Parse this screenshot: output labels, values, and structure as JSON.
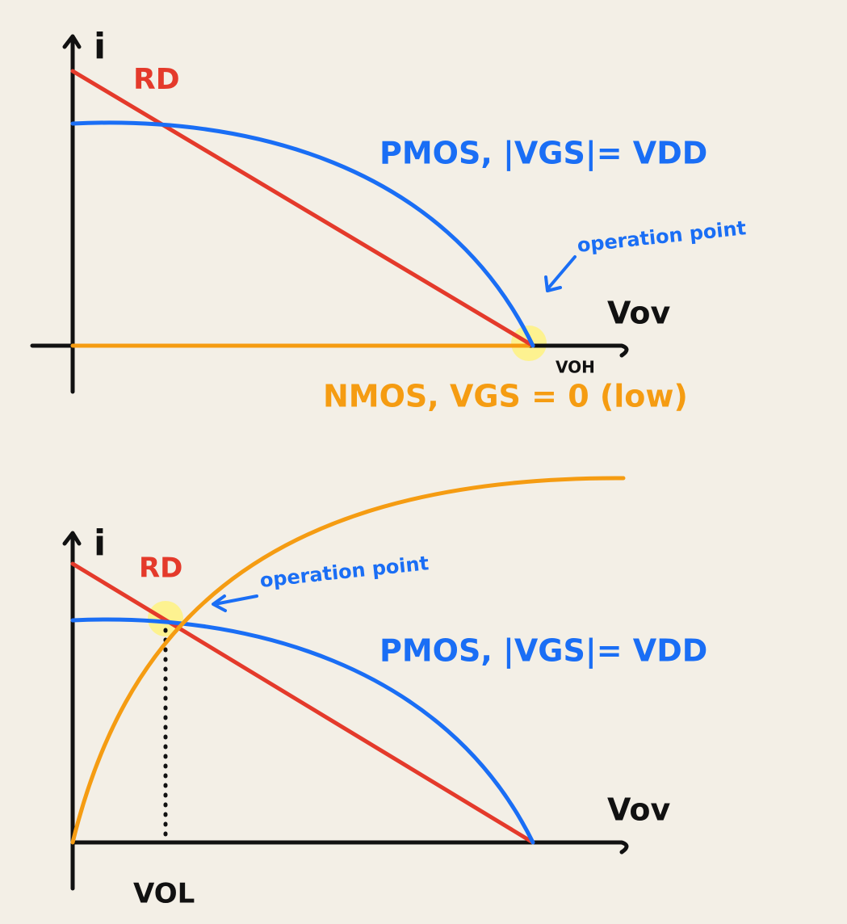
{
  "panels": [
    {
      "y_axis_label": "i",
      "load_line_label": "RD",
      "pmos_label": "PMOS, |VGS|= VDD",
      "annotation": "operation point",
      "x_axis_label": "Vov",
      "point_label": "VOH",
      "nmos_label": "NMOS, VGS = 0 (low)"
    },
    {
      "y_axis_label": "i",
      "load_line_label": "RD",
      "annotation": "operation point",
      "pmos_label": "PMOS, |VGS|= VDD",
      "x_axis_label": "Vov",
      "point_label": "VOL"
    }
  ]
}
